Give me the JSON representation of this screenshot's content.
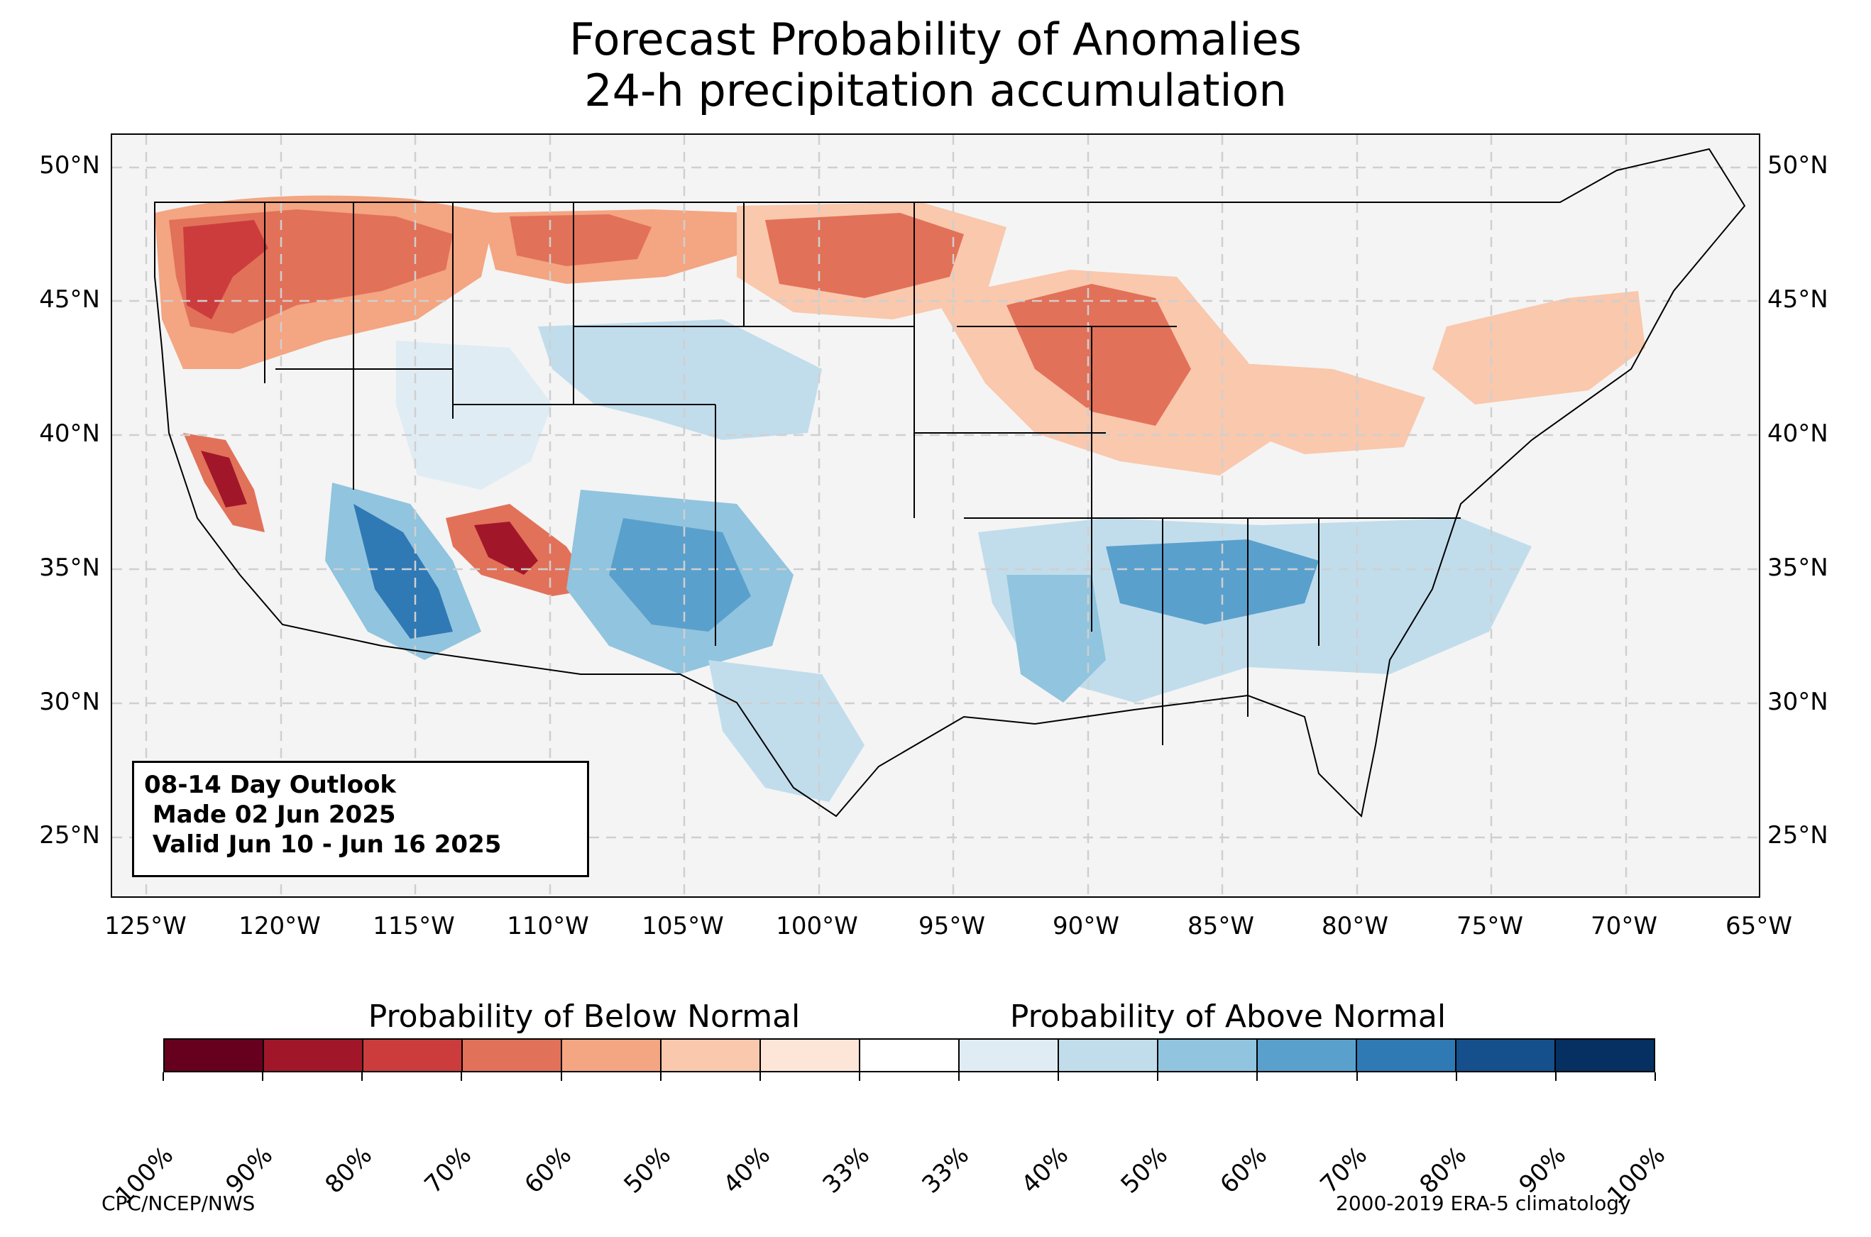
{
  "title": {
    "line1": "Forecast Probability of Anomalies",
    "line2": "24-h precipitation accumulation"
  },
  "map": {
    "lat_labels": [
      "50°N",
      "45°N",
      "40°N",
      "35°N",
      "30°N",
      "25°N"
    ],
    "lon_labels": [
      "125°W",
      "120°W",
      "115°W",
      "110°W",
      "105°W",
      "100°W",
      "95°W",
      "90°W",
      "85°W",
      "80°W",
      "75°W",
      "70°W",
      "65°W"
    ],
    "outlook": {
      "line1": "08-14 Day Outlook",
      "line2": " Made 02 Jun 2025",
      "line3": " Valid Jun 10 - Jun 16 2025"
    }
  },
  "legend": {
    "below_label": "Probability of Below Normal",
    "above_label": "Probability of Above Normal",
    "tick_labels": [
      "100%",
      "90%",
      "80%",
      "70%",
      "60%",
      "50%",
      "40%",
      "33%",
      "33%",
      "40%",
      "50%",
      "60%",
      "70%",
      "80%",
      "90%",
      "100%"
    ],
    "colors": [
      "#67001f",
      "#a11729",
      "#cc3c3d",
      "#e27159",
      "#f4a582",
      "#f9c8ad",
      "#fde6d8",
      "#ffffff",
      "#e0ecf3",
      "#c1ddec",
      "#91c4de",
      "#5aa0cd",
      "#2f79b5",
      "#154f8c",
      "#053061"
    ]
  },
  "footer": {
    "left": "CPC/NCEP/NWS",
    "right": "2000-2019 ERA-5 climatology"
  }
}
